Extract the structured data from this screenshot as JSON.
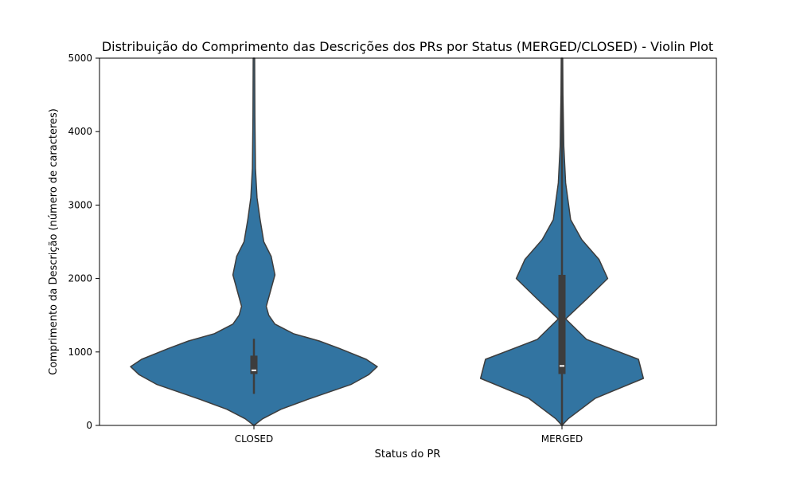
{
  "chart_data": {
    "type": "violin",
    "title": "Distribuição do Comprimento das Descrições dos PRs por Status (MERGED/CLOSED) - Violin Plot",
    "xlabel": "Status do PR",
    "ylabel": "Comprimento da Descrição (número de caracteres)",
    "ylim": [
      0,
      5000
    ],
    "yticks": [
      "0",
      "1000",
      "2000",
      "3000",
      "4000",
      "5000"
    ],
    "grid": false,
    "colors": {
      "fill": "#3274a1",
      "edge": "#3d3d3d",
      "box": "#3d3d3d",
      "median": "#ffffff"
    },
    "categories": [
      "CLOSED",
      "MERGED"
    ],
    "series": [
      {
        "category": "CLOSED",
        "median": 750,
        "q1": 700,
        "q3": 950,
        "whisker_low": 430,
        "whisker_high": 1180,
        "density_profile": [
          [
            0,
            0.0
          ],
          [
            90,
            0.07
          ],
          [
            220,
            0.22
          ],
          [
            350,
            0.43
          ],
          [
            560,
            0.79
          ],
          [
            690,
            0.93
          ],
          [
            800,
            1.0
          ],
          [
            900,
            0.91
          ],
          [
            1050,
            0.69
          ],
          [
            1150,
            0.53
          ],
          [
            1250,
            0.32
          ],
          [
            1380,
            0.17
          ],
          [
            1500,
            0.12
          ],
          [
            1620,
            0.1
          ],
          [
            1800,
            0.13
          ],
          [
            2050,
            0.17
          ],
          [
            2300,
            0.14
          ],
          [
            2500,
            0.08
          ],
          [
            2800,
            0.05
          ],
          [
            3100,
            0.025
          ],
          [
            3500,
            0.012
          ],
          [
            4200,
            0.008
          ],
          [
            5000,
            0.006
          ]
        ]
      },
      {
        "category": "MERGED",
        "median": 810,
        "q1": 700,
        "q3": 2050,
        "whisker_low": 0,
        "whisker_high": 5000,
        "density_profile": [
          [
            0,
            0.0
          ],
          [
            90,
            0.05
          ],
          [
            370,
            0.27
          ],
          [
            640,
            0.66
          ],
          [
            900,
            0.62
          ],
          [
            1170,
            0.2
          ],
          [
            1450,
            0.03
          ],
          [
            1720,
            0.2
          ],
          [
            2000,
            0.37
          ],
          [
            2260,
            0.3
          ],
          [
            2530,
            0.16
          ],
          [
            2800,
            0.07
          ],
          [
            3300,
            0.03
          ],
          [
            3800,
            0.015
          ],
          [
            4500,
            0.008
          ],
          [
            5000,
            0.006
          ]
        ]
      }
    ]
  }
}
